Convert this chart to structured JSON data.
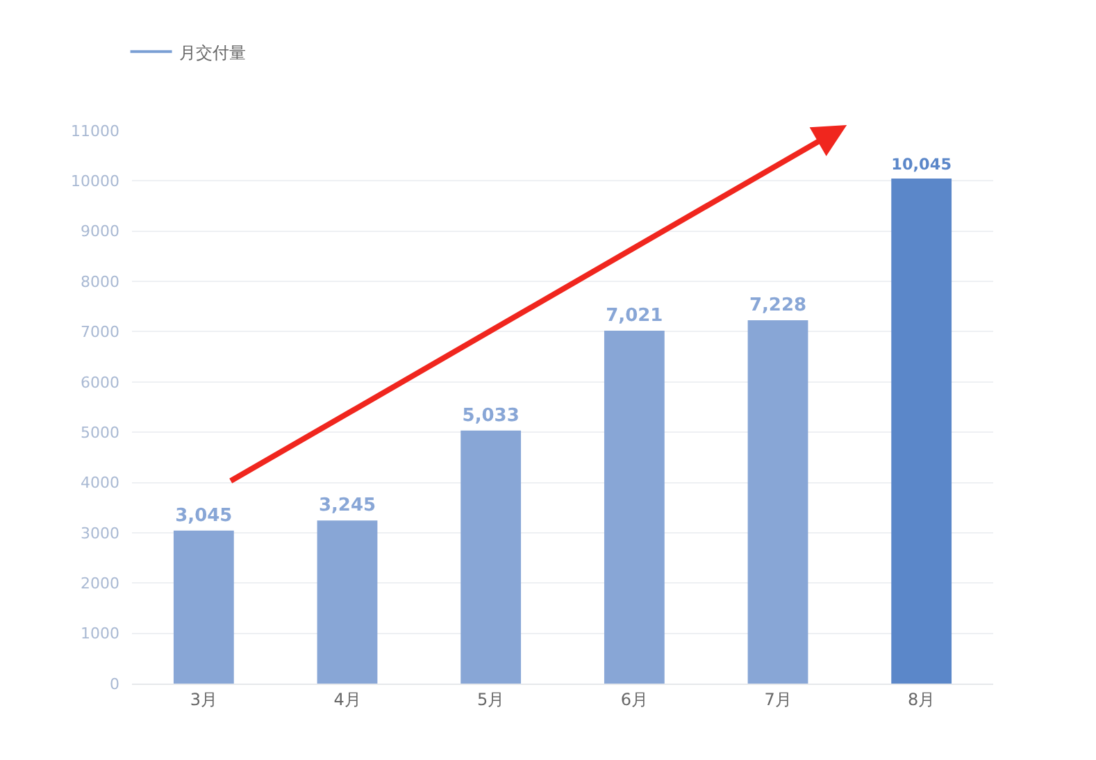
{
  "chart_data": {
    "type": "bar",
    "categories": [
      "3月",
      "4月",
      "5月",
      "6月",
      "7月",
      "8月"
    ],
    "series": [
      {
        "name": "月交付量",
        "color": "#7a9fd4",
        "colors": [
          "#88a6d6",
          "#88a6d6",
          "#88a6d6",
          "#88a6d6",
          "#88a6d6",
          "#5b87c9"
        ],
        "values": [
          3045,
          3245,
          5033,
          7021,
          7228,
          10045
        ],
        "value_labels": [
          "3,045",
          "3,245",
          "5,033",
          "7,021",
          "7,228",
          "10,045"
        ]
      }
    ],
    "ylim": [
      0,
      11000
    ],
    "yticks": [
      0,
      1000,
      2000,
      3000,
      4000,
      5000,
      6000,
      7000,
      8000,
      9000,
      10000,
      11000
    ],
    "grid": "y",
    "legend": "top left"
  }
}
